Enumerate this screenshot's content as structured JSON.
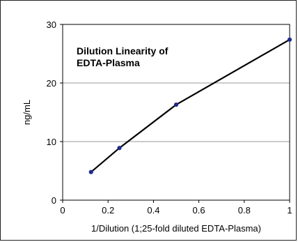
{
  "chart_data": {
    "type": "line",
    "title": [
      "Dilution Linearity of",
      "EDTA-Plasma"
    ],
    "xlabel": "1/Dilution (1;25-fold diluted EDTA-Plasma)",
    "ylabel": "ng/mL",
    "xlim": [
      0,
      1
    ],
    "ylim": [
      0,
      30
    ],
    "x_ticks": [
      "0",
      "0.2",
      "0.4",
      "0.6",
      "0.8",
      "1"
    ],
    "y_ticks": [
      "0",
      "10",
      "20",
      "30"
    ],
    "grid": "horizontal",
    "series": [
      {
        "x": [
          0.125,
          0.25,
          0.5,
          1.0
        ],
        "y": [
          4.8,
          8.9,
          16.3,
          27.4
        ],
        "line_color": "#000000",
        "marker_color": "#1f2a8c"
      }
    ]
  }
}
